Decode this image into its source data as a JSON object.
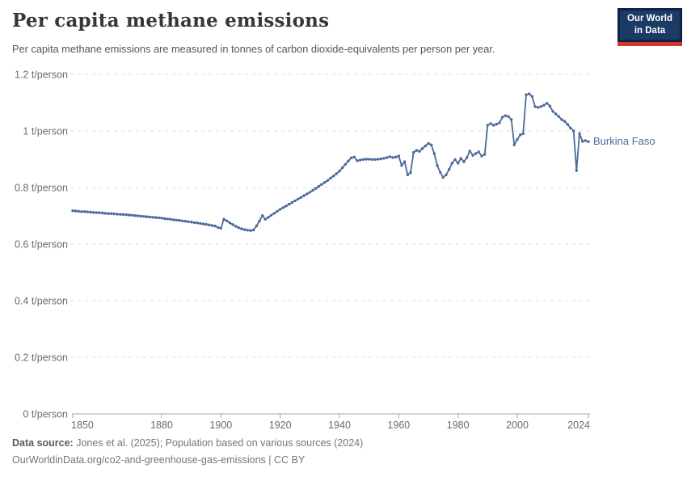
{
  "header": {
    "title": "Per capita methane emissions",
    "subtitle": "Per capita methane emissions are measured in tonnes of carbon dioxide-equivalents per person per year.",
    "logo": {
      "line1": "Our World",
      "line2": "in Data",
      "bg_color": "#0d2446",
      "panel_color": "#1b3a64",
      "accent_color": "#d0362c"
    }
  },
  "chart_data": {
    "type": "line",
    "title": "Per capita methane emissions",
    "entity": "Burkina Faso",
    "unit": "t/person",
    "series_color": "#4C6A9C",
    "grid": true,
    "legend_position": "right-of-line-end",
    "ylim": [
      0,
      1.2
    ],
    "yticks": [
      {
        "v": 0,
        "label": "0 t/person"
      },
      {
        "v": 0.2,
        "label": "0.2 t/person"
      },
      {
        "v": 0.4,
        "label": "0.4 t/person"
      },
      {
        "v": 0.6,
        "label": "0.6 t/person"
      },
      {
        "v": 0.8,
        "label": "0.8 t/person"
      },
      {
        "v": 1,
        "label": "1 t/person"
      },
      {
        "v": 1.2,
        "label": "1.2 t/person"
      }
    ],
    "xticks": [
      1850,
      1880,
      1900,
      1920,
      1940,
      1960,
      1980,
      2000,
      2024
    ],
    "years": [
      1850,
      1851,
      1852,
      1853,
      1854,
      1855,
      1856,
      1857,
      1858,
      1859,
      1860,
      1861,
      1862,
      1863,
      1864,
      1865,
      1866,
      1867,
      1868,
      1869,
      1870,
      1871,
      1872,
      1873,
      1874,
      1875,
      1876,
      1877,
      1878,
      1879,
      1880,
      1881,
      1882,
      1883,
      1884,
      1885,
      1886,
      1887,
      1888,
      1889,
      1890,
      1891,
      1892,
      1893,
      1894,
      1895,
      1896,
      1897,
      1898,
      1899,
      1900,
      1901,
      1902,
      1903,
      1904,
      1905,
      1906,
      1907,
      1908,
      1909,
      1910,
      1911,
      1912,
      1913,
      1914,
      1915,
      1916,
      1917,
      1918,
      1919,
      1920,
      1921,
      1922,
      1923,
      1924,
      1925,
      1926,
      1927,
      1928,
      1929,
      1930,
      1931,
      1932,
      1933,
      1934,
      1935,
      1936,
      1937,
      1938,
      1939,
      1940,
      1941,
      1942,
      1943,
      1944,
      1945,
      1946,
      1947,
      1948,
      1949,
      1950,
      1951,
      1952,
      1953,
      1954,
      1955,
      1956,
      1957,
      1958,
      1959,
      1960,
      1961,
      1962,
      1963,
      1964,
      1965,
      1966,
      1967,
      1968,
      1969,
      1970,
      1971,
      1972,
      1973,
      1974,
      1975,
      1976,
      1977,
      1978,
      1979,
      1980,
      1981,
      1982,
      1983,
      1984,
      1985,
      1986,
      1987,
      1988,
      1989,
      1990,
      1991,
      1992,
      1993,
      1994,
      1995,
      1996,
      1997,
      1998,
      1999,
      2000,
      2001,
      2002,
      2003,
      2004,
      2005,
      2006,
      2007,
      2008,
      2009,
      2010,
      2011,
      2012,
      2013,
      2014,
      2015,
      2016,
      2017,
      2018,
      2019,
      2020,
      2021,
      2022,
      2023,
      2024
    ],
    "values": [
      0.718,
      0.717,
      0.716,
      0.715,
      0.715,
      0.714,
      0.713,
      0.712,
      0.711,
      0.711,
      0.71,
      0.709,
      0.708,
      0.708,
      0.707,
      0.706,
      0.705,
      0.705,
      0.704,
      0.703,
      0.702,
      0.701,
      0.7,
      0.699,
      0.698,
      0.697,
      0.696,
      0.695,
      0.694,
      0.693,
      0.692,
      0.69,
      0.689,
      0.688,
      0.686,
      0.685,
      0.684,
      0.682,
      0.681,
      0.679,
      0.678,
      0.676,
      0.675,
      0.673,
      0.671,
      0.67,
      0.668,
      0.666,
      0.664,
      0.659,
      0.656,
      0.688,
      0.682,
      0.675,
      0.669,
      0.663,
      0.658,
      0.654,
      0.651,
      0.649,
      0.648,
      0.65,
      0.664,
      0.681,
      0.701,
      0.688,
      0.695,
      0.702,
      0.709,
      0.716,
      0.723,
      0.729,
      0.735,
      0.741,
      0.747,
      0.753,
      0.759,
      0.765,
      0.771,
      0.777,
      0.783,
      0.79,
      0.797,
      0.804,
      0.811,
      0.818,
      0.825,
      0.833,
      0.841,
      0.849,
      0.858,
      0.87,
      0.882,
      0.894,
      0.905,
      0.908,
      0.895,
      0.897,
      0.899,
      0.9,
      0.9,
      0.899,
      0.899,
      0.9,
      0.901,
      0.903,
      0.906,
      0.909,
      0.906,
      0.908,
      0.911,
      0.878,
      0.891,
      0.845,
      0.853,
      0.924,
      0.931,
      0.928,
      0.938,
      0.947,
      0.956,
      0.951,
      0.92,
      0.878,
      0.854,
      0.836,
      0.845,
      0.864,
      0.886,
      0.899,
      0.886,
      0.903,
      0.891,
      0.906,
      0.929,
      0.914,
      0.92,
      0.926,
      0.911,
      0.917,
      1.02,
      1.026,
      1.02,
      1.024,
      1.029,
      1.049,
      1.054,
      1.051,
      1.04,
      0.951,
      0.97,
      0.986,
      0.991,
      1.128,
      1.131,
      1.122,
      1.086,
      1.083,
      1.086,
      1.091,
      1.098,
      1.088,
      1.069,
      1.06,
      1.051,
      1.04,
      1.034,
      1.023,
      1.01,
      1.0,
      0.86,
      0.991,
      0.963,
      0.966,
      0.962
    ]
  },
  "footer": {
    "source_label": "Data source:",
    "source_text": " Jones et al. (2025); Population based on various sources (2024)",
    "line2": "OurWorldinData.org/co2-and-greenhouse-gas-emissions | CC BY"
  },
  "colors": {
    "gridline": "#dcdcdc",
    "axis": "#a5a5a5",
    "tick_label": "#6b6b6b"
  }
}
